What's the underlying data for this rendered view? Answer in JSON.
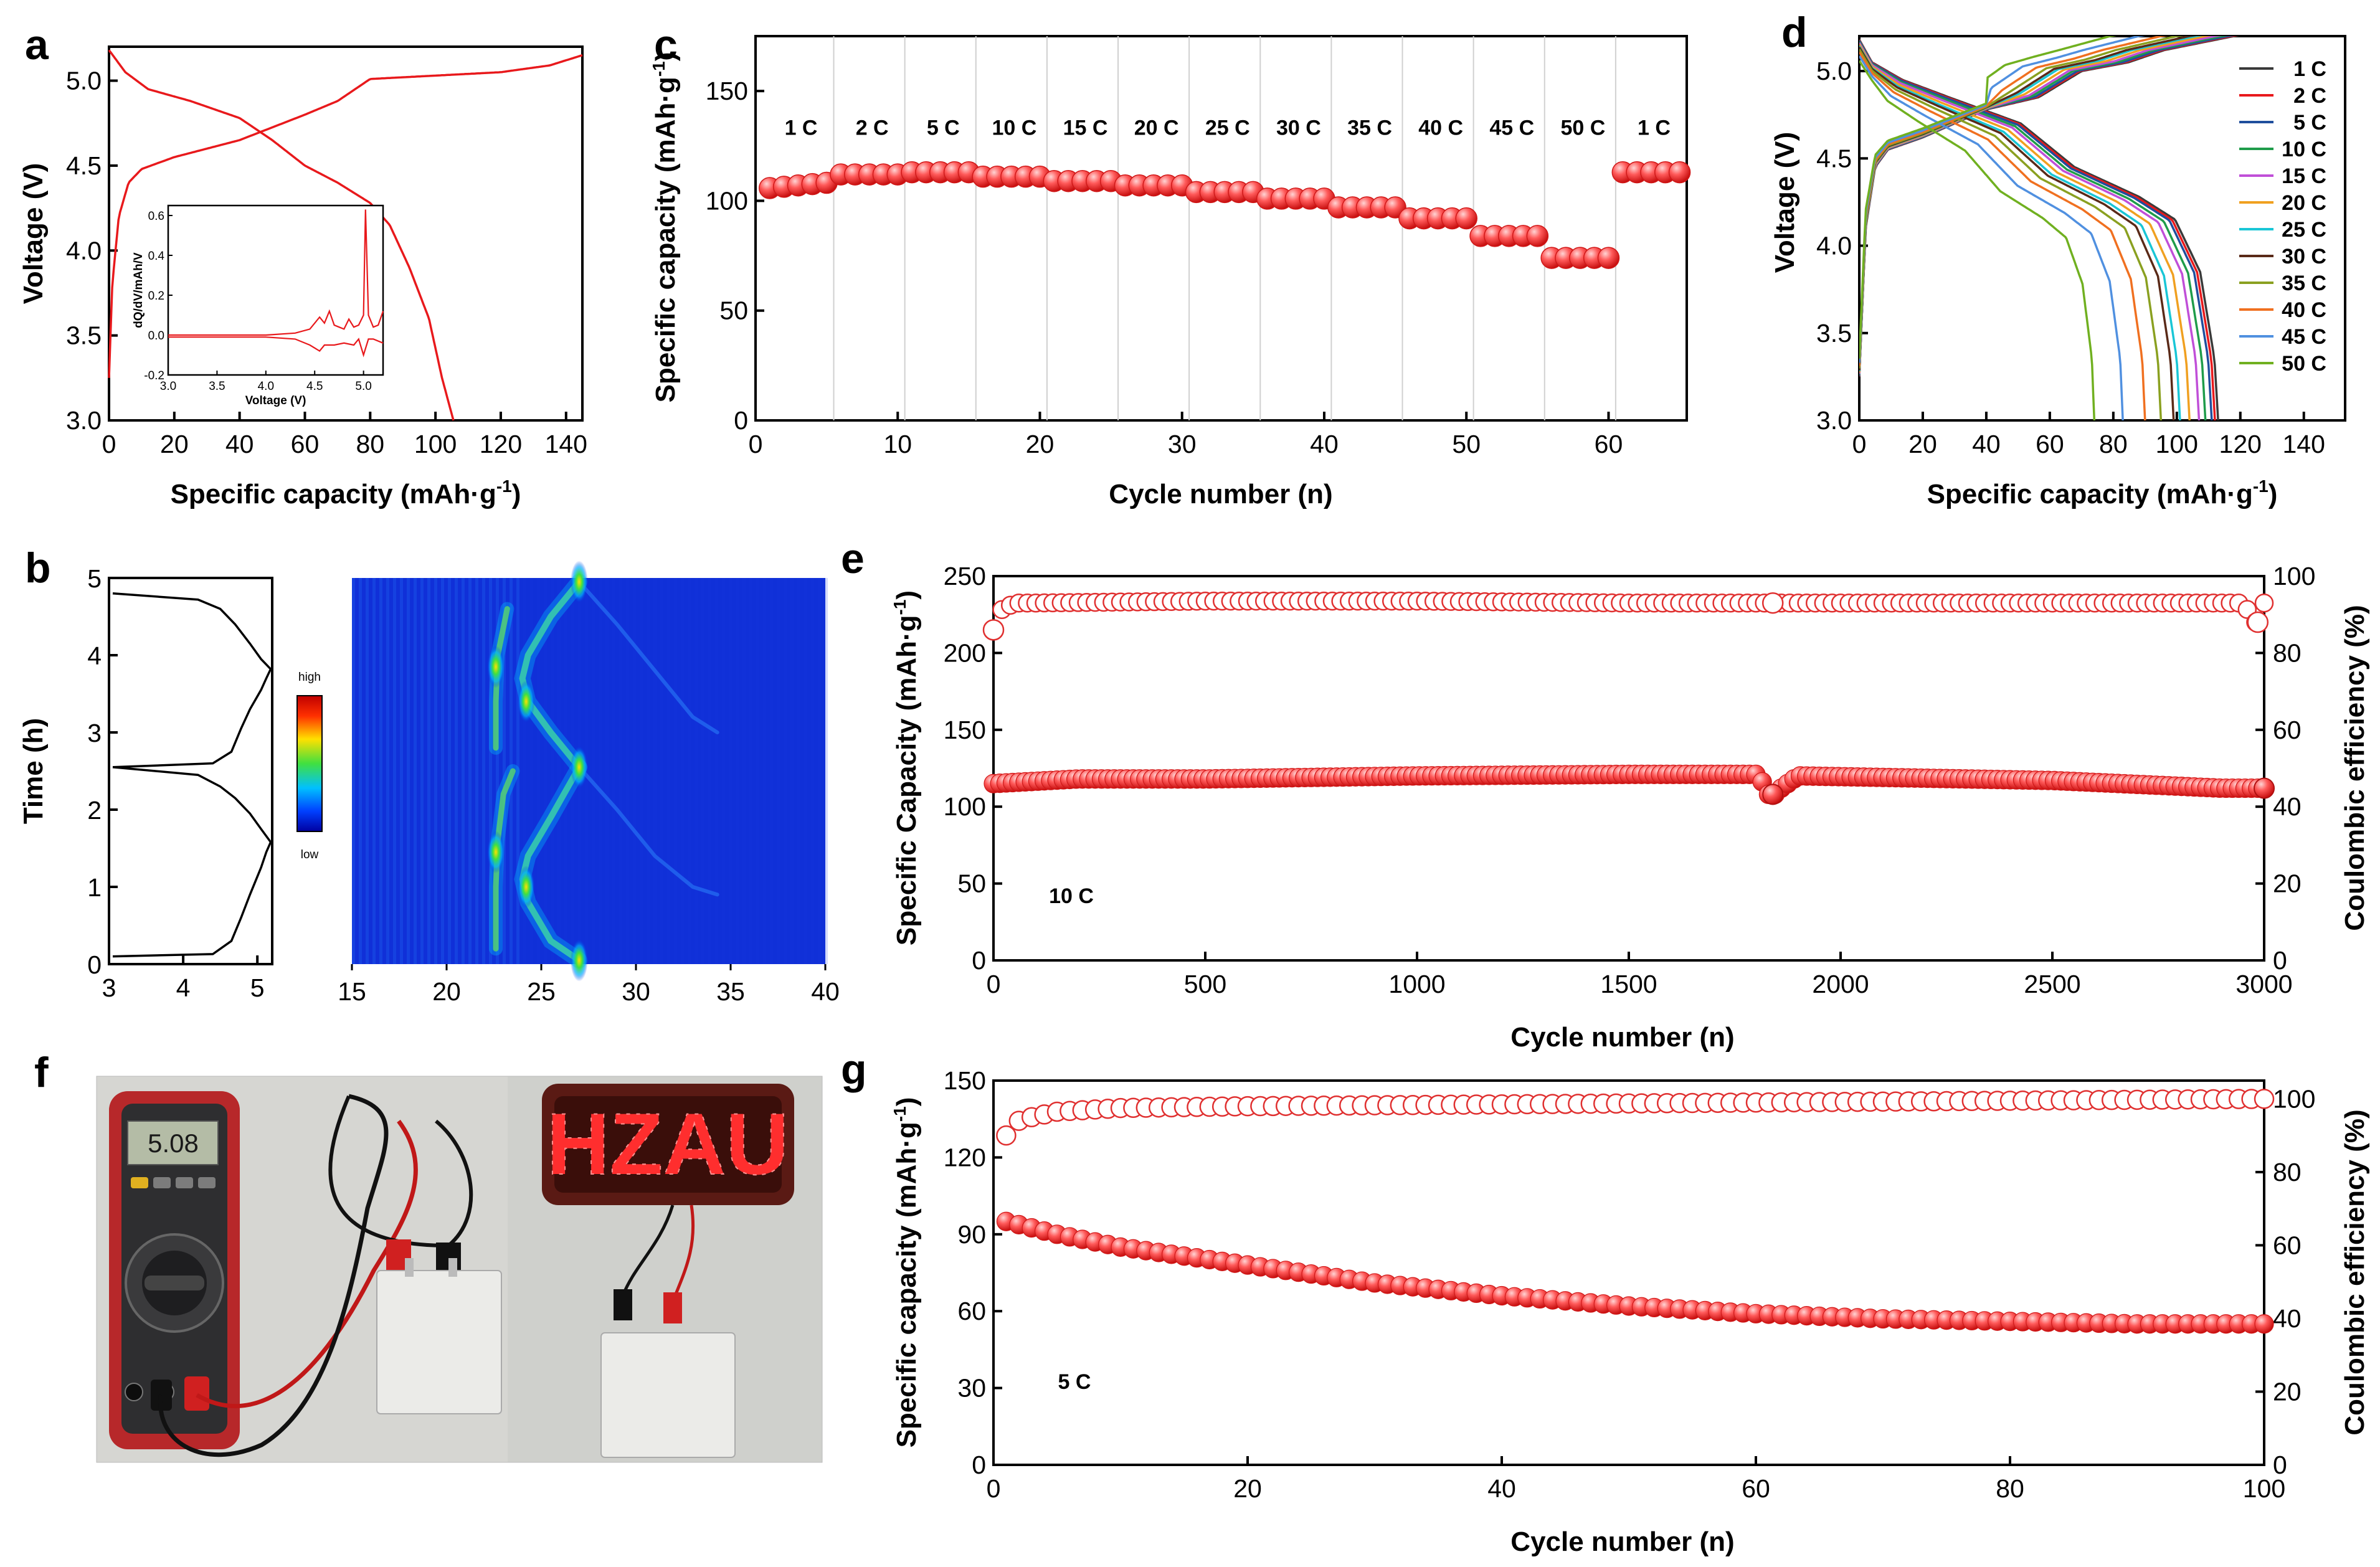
{
  "panels": {
    "a": {
      "label": "a",
      "xlabel": "Specific capacity (mAh·g",
      "xlabel_sup": "-1",
      "xlabel_end": ")",
      "ylabel": "Voltage (V)",
      "inset_xlabel": "Voltage (V)",
      "inset_ylabel": "dQ/dV/mAh/V"
    },
    "b": {
      "label": "b",
      "ylabel": "Time (h)",
      "colorbar_high": "high",
      "colorbar_low": "low"
    },
    "c": {
      "label": "c",
      "xlabel": "Cycle number (n)",
      "ylabel": "Specific capacity (mAh·g",
      "ylabel_sup": "-1",
      "ylabel_end": ")"
    },
    "d": {
      "label": "d",
      "xlabel": "Specific capacity (mAh·g",
      "xlabel_sup": "-1",
      "xlabel_end": ")",
      "ylabel": "Voltage (V)"
    },
    "e": {
      "label": "e",
      "xlabel": "Cycle number (n)",
      "ylabel": "Specific Capacity (mAh·g",
      "ylabel_sup": "-1",
      "ylabel_end": ")",
      "y2label": "Coulombic efficiency (%)",
      "annotation": "10 C"
    },
    "f": {
      "label": "f",
      "multimeter_reading": "5.08",
      "sign_text": "HZAU"
    },
    "g": {
      "label": "g",
      "xlabel": "Cycle number (n)",
      "ylabel": "Specific capacity (mAh·g",
      "ylabel_sup": "-1",
      "ylabel_end": ")",
      "y2label": "Coulombic efficiency (%)",
      "annotation": "5 C"
    }
  },
  "colors": {
    "red": "#e8191c",
    "marker_fill": "#ff6a6a"
  },
  "chart_data": [
    {
      "panel": "a",
      "type": "line",
      "xlim": [
        0,
        145
      ],
      "ylim": [
        3.0,
        5.2
      ],
      "xticks": [
        "0",
        "20",
        "40",
        "60",
        "80",
        "100",
        "120",
        "140"
      ],
      "yticks": [
        "3.0",
        "3.5",
        "4.0",
        "4.5",
        "5.0"
      ],
      "series": [
        {
          "x": [
            0,
            1,
            3,
            6,
            10,
            20,
            40,
            60,
            70,
            80,
            100,
            120,
            135,
            145
          ],
          "y": [
            3.25,
            3.8,
            4.2,
            4.4,
            4.48,
            4.55,
            4.65,
            4.8,
            4.88,
            5.01,
            5.03,
            5.05,
            5.09,
            5.15
          ]
        },
        {
          "x": [
            0,
            5,
            12,
            25,
            40,
            50,
            60,
            70,
            80,
            86,
            92,
            98,
            102,
            105.5
          ],
          "y": [
            5.18,
            5.05,
            4.95,
            4.88,
            4.78,
            4.65,
            4.5,
            4.4,
            4.28,
            4.15,
            3.9,
            3.6,
            3.25,
            3.0
          ]
        }
      ],
      "inset": {
        "xlim": [
          3.0,
          5.2
        ],
        "ylim": [
          -0.2,
          0.65
        ],
        "xticks": [
          "3.0",
          "3.5",
          "4.0",
          "4.5",
          "5.0"
        ],
        "yticks": [
          "-0.2",
          "0.0",
          "0.2",
          "0.4",
          "0.6"
        ],
        "series": [
          {
            "x": [
              3.0,
              3.5,
              4.0,
              4.3,
              4.45,
              4.55,
              4.6,
              4.65,
              4.7,
              4.75,
              4.8,
              4.85,
              4.9,
              4.95,
              5.0,
              5.02,
              5.05,
              5.1,
              5.15,
              5.2
            ],
            "y": [
              0.0,
              0.0,
              0.0,
              0.01,
              0.03,
              0.09,
              0.06,
              0.12,
              0.05,
              0.04,
              0.03,
              0.08,
              0.04,
              0.05,
              0.1,
              0.63,
              0.1,
              0.04,
              0.05,
              0.12
            ]
          },
          {
            "x": [
              3.0,
              3.5,
              4.0,
              4.3,
              4.45,
              4.55,
              4.6,
              4.7,
              4.8,
              4.9,
              4.95,
              5.0,
              5.05,
              5.1,
              5.2
            ],
            "y": [
              -0.01,
              -0.01,
              -0.01,
              -0.02,
              -0.05,
              -0.08,
              -0.05,
              -0.05,
              -0.04,
              -0.05,
              -0.02,
              -0.1,
              -0.02,
              -0.02,
              -0.04
            ]
          }
        ]
      }
    },
    {
      "panel": "b",
      "type": "heatmap",
      "left_xlim": [
        3,
        5.2
      ],
      "ylim": [
        0,
        5
      ],
      "left_xticks": [
        "3",
        "4",
        "5"
      ],
      "yticks": [
        "0",
        "1",
        "2",
        "3",
        "4",
        "5"
      ],
      "heat_xlim": [
        15,
        40
      ],
      "heat_xticks": [
        "15",
        "20",
        "25",
        "30",
        "35",
        "40"
      ]
    },
    {
      "panel": "c",
      "type": "scatter",
      "xlim": [
        0,
        65.5
      ],
      "ylim": [
        0,
        175
      ],
      "xticks": [
        "0",
        "10",
        "20",
        "30",
        "40",
        "50",
        "60"
      ],
      "yticks": [
        "0",
        "50",
        "100",
        "150"
      ],
      "rate_labels": [
        "1 C",
        "2 C",
        "5 C",
        "10 C",
        "15 C",
        "20 C",
        "25 C",
        "30 C",
        "35 C",
        "40 C",
        "45 C",
        "50 C",
        "1 C"
      ],
      "rate_values": [
        107,
        112,
        113,
        111,
        109,
        107,
        104,
        101,
        97,
        92,
        84,
        74,
        113
      ]
    },
    {
      "panel": "d",
      "type": "line",
      "xlim": [
        0,
        153
      ],
      "ylim": [
        3.0,
        5.2
      ],
      "xticks": [
        "0",
        "20",
        "40",
        "60",
        "80",
        "100",
        "120",
        "140"
      ],
      "yticks": [
        "3.0",
        "3.5",
        "4.0",
        "4.5",
        "5.0"
      ],
      "legend": [
        "1 C",
        "2 C",
        "5 C",
        "10 C",
        "15 C",
        "20 C",
        "25 C",
        "30 C",
        "35 C",
        "40 C",
        "45 C",
        "50 C"
      ],
      "legend_colors": [
        "#3a3a3a",
        "#e8191c",
        "#1f4e9c",
        "#1f9c4a",
        "#c04fd8",
        "#f0a020",
        "#19c6d6",
        "#5a2a18",
        "#8aa020",
        "#f07020",
        "#5090e0",
        "#70b020"
      ],
      "discharge_end": [
        113,
        112,
        111,
        109,
        107,
        104,
        101,
        99,
        95,
        90,
        83,
        74
      ]
    },
    {
      "panel": "e",
      "type": "scatter",
      "xlim": [
        0,
        3000
      ],
      "ylim": [
        0,
        250
      ],
      "y2lim": [
        0,
        100
      ],
      "xticks": [
        "0",
        "500",
        "1000",
        "1500",
        "2000",
        "2500",
        "3000"
      ],
      "yticks": [
        "0",
        "50",
        "100",
        "150",
        "200",
        "250"
      ],
      "y2ticks": [
        "0",
        "20",
        "40",
        "60",
        "80",
        "100"
      ],
      "capacity": {
        "x": [
          0,
          200,
          500,
          1000,
          1500,
          1800,
          1840,
          1900,
          2500,
          2900,
          3000
        ],
        "y": [
          115,
          118,
          118,
          120,
          121,
          121,
          108,
          120,
          117,
          112,
          112
        ]
      },
      "efficiency": {
        "x": [
          0,
          15,
          50,
          100,
          500,
          1000,
          1500,
          2000,
          2500,
          2950,
          2980,
          3000
        ],
        "y": [
          86,
          91,
          93,
          93,
          93.5,
          93.5,
          93,
          93,
          93,
          93,
          88,
          93
        ]
      }
    },
    {
      "panel": "g",
      "type": "scatter",
      "xlim": [
        0,
        100
      ],
      "ylim": [
        0,
        150
      ],
      "y2lim": [
        0,
        105
      ],
      "xticks": [
        "0",
        "20",
        "40",
        "60",
        "80",
        "100"
      ],
      "yticks": [
        "0",
        "30",
        "60",
        "90",
        "120",
        "150"
      ],
      "y2ticks": [
        "0",
        "20",
        "40",
        "60",
        "80",
        "100"
      ],
      "capacity": {
        "x": [
          1,
          5,
          10,
          20,
          30,
          40,
          50,
          60,
          70,
          80,
          90,
          100
        ],
        "y": [
          95,
          90,
          85,
          78,
          71,
          66,
          62,
          59,
          57,
          56,
          55,
          55
        ]
      },
      "efficiency": {
        "x": [
          1,
          2,
          3,
          5,
          10,
          20,
          40,
          60,
          80,
          100
        ],
        "y": [
          90,
          94,
          95,
          96.5,
          97.5,
          98,
          98.5,
          99,
          99.5,
          100
        ]
      }
    }
  ]
}
